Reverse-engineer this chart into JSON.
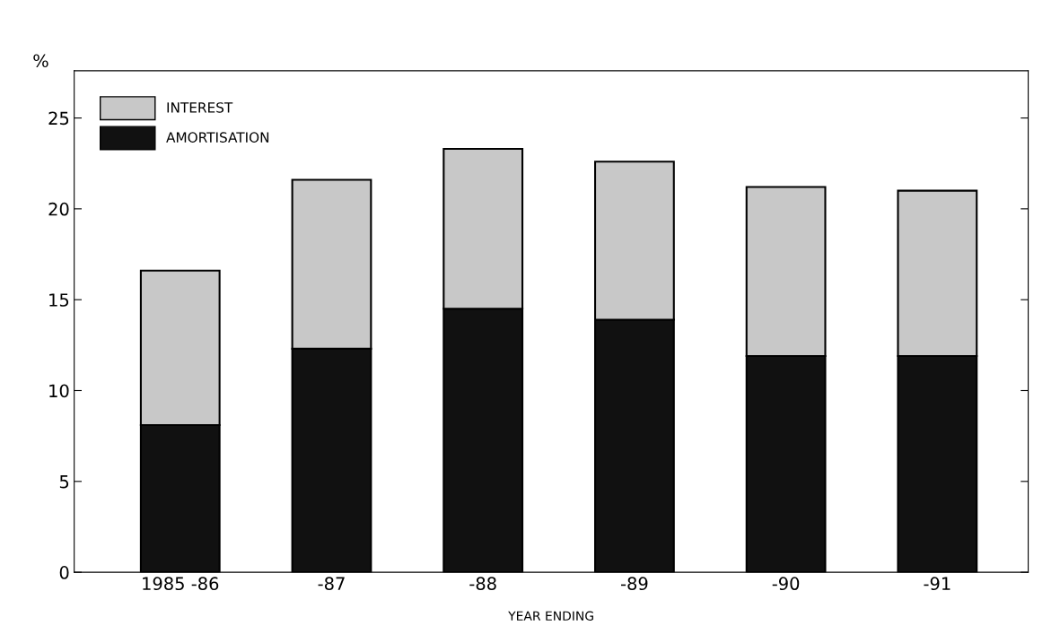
{
  "chart_data": {
    "type": "bar",
    "stacked": true,
    "ylabel": "%",
    "xlabel": "YEAR ENDING",
    "categories": [
      "1985 -86",
      "-87",
      "-88",
      "-89",
      "-90",
      "-91"
    ],
    "series": [
      {
        "name": "AMORTISATION",
        "color": "#111111",
        "values": [
          8.1,
          12.3,
          14.5,
          13.9,
          11.9,
          11.9
        ]
      },
      {
        "name": "INTEREST",
        "color": "#c8c8c8",
        "values": [
          8.5,
          9.3,
          8.8,
          8.7,
          9.3,
          9.1
        ]
      }
    ],
    "ylim": [
      0,
      27.6
    ],
    "yticks": [
      0,
      5,
      10,
      15,
      20,
      25
    ],
    "grid": false,
    "legend": "top left"
  }
}
